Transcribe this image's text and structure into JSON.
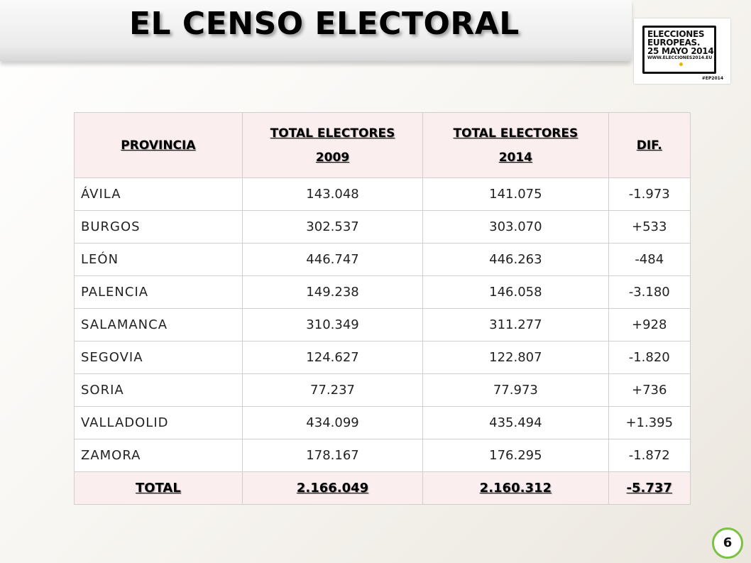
{
  "title": "EL CENSO ELECTORAL",
  "logo": {
    "lines": [
      "ELECCIONES",
      "EUROPEAS.",
      "25 MAYO 2014"
    ],
    "url": "WWW.ELECCIONES2014.EU",
    "hashtag": "#EP2014"
  },
  "table": {
    "headers": {
      "province": "PROVINCIA",
      "y2009_line1": "TOTAL ELECTORES",
      "y2009_line2": "2009",
      "y2014_line1": "TOTAL ELECTORES",
      "y2014_line2": "2014",
      "diff": "DIF."
    },
    "rows": [
      {
        "province": "ÁVILA",
        "y2009": "143.048",
        "y2014": "141.075",
        "diff": "-1.973"
      },
      {
        "province": "BURGOS",
        "y2009": "302.537",
        "y2014": "303.070",
        "diff": "+533"
      },
      {
        "province": "LEÓN",
        "y2009": "446.747",
        "y2014": "446.263",
        "diff": "-484"
      },
      {
        "province": "PALENCIA",
        "y2009": "149.238",
        "y2014": "146.058",
        "diff": "-3.180"
      },
      {
        "province": "SALAMANCA",
        "y2009": "310.349",
        "y2014": "311.277",
        "diff": "+928"
      },
      {
        "province": "SEGOVIA",
        "y2009": "124.627",
        "y2014": "122.807",
        "diff": "-1.820"
      },
      {
        "province": "SORIA",
        "y2009": "77.237",
        "y2014": "77.973",
        "diff": "+736"
      },
      {
        "province": "VALLADOLID",
        "y2009": "434.099",
        "y2014": "435.494",
        "diff": "+1.395"
      },
      {
        "province": "ZAMORA",
        "y2009": "178.167",
        "y2014": "176.295",
        "diff": "-1.872"
      }
    ],
    "total": {
      "province": "TOTAL",
      "y2009": "2.166.049",
      "y2014": "2.160.312",
      "diff": "-5.737"
    }
  },
  "page_number": "6"
}
